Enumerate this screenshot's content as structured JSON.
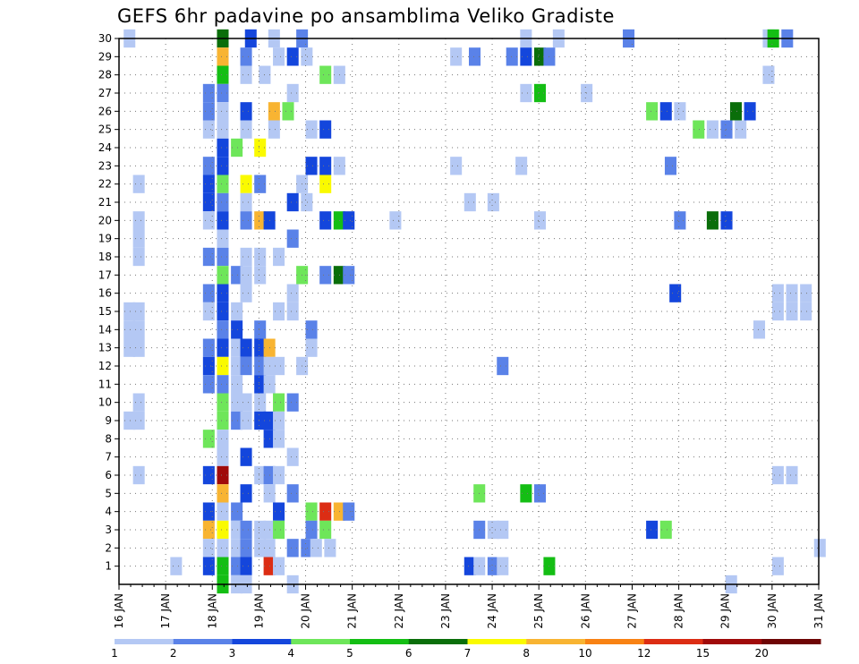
{
  "chart_data": {
    "type": "heatmap",
    "title": "GEFS 6hr padavine po ansamblima Veliko Gradiste",
    "x_tick_labels": [
      "16 JAN",
      "17 JAN",
      "18 JAN",
      "19 JAN",
      "20 JAN",
      "21 JAN",
      "22 JAN",
      "23 JAN",
      "24 JAN",
      "25 JAN",
      "26 JAN",
      "27 JAN",
      "28 JAN",
      "29 JAN",
      "30 JAN",
      "31 JAN"
    ],
    "y_tick_labels": [
      "1",
      "2",
      "3",
      "4",
      "5",
      "6",
      "7",
      "8",
      "9",
      "10",
      "11",
      "12",
      "13",
      "14",
      "15",
      "16",
      "17",
      "18",
      "19",
      "20",
      "21",
      "22",
      "23",
      "24",
      "25",
      "26",
      "27",
      "28",
      "29",
      "30"
    ],
    "xlim_days": [
      0,
      15
    ],
    "ylim": [
      0,
      30
    ],
    "grid": true,
    "colorbar": {
      "labels": [
        "1",
        "2",
        "3",
        "4",
        "5",
        "6",
        "7",
        "8",
        "10",
        "12",
        "15",
        "20"
      ],
      "colors": [
        "#b4c8f4",
        "#5a82e8",
        "#1446dc",
        "#6ee65a",
        "#14be14",
        "#0a6e0a",
        "#fafa00",
        "#f8b432",
        "#f88214",
        "#dc2d14",
        "#a00a0a",
        "#6e0505"
      ]
    },
    "cells": [
      {
        "m": 30,
        "d": 0.1,
        "c": 1
      },
      {
        "m": 30,
        "d": 2.1,
        "c": 6
      },
      {
        "m": 30,
        "d": 2.7,
        "c": 3
      },
      {
        "m": 30,
        "d": 3.2,
        "c": 1
      },
      {
        "m": 30,
        "d": 3.8,
        "c": 2
      },
      {
        "m": 30,
        "d": 8.6,
        "c": 1
      },
      {
        "m": 30,
        "d": 9.3,
        "c": 1
      },
      {
        "m": 30,
        "d": 10.8,
        "c": 2
      },
      {
        "m": 30,
        "d": 13.8,
        "c": 1
      },
      {
        "m": 30,
        "d": 13.9,
        "c": 5
      },
      {
        "m": 30,
        "d": 14.2,
        "c": 2
      },
      {
        "m": 29,
        "d": 2.1,
        "c": 8
      },
      {
        "m": 29,
        "d": 2.6,
        "c": 2
      },
      {
        "m": 29,
        "d": 3.3,
        "c": 1
      },
      {
        "m": 29,
        "d": 3.6,
        "c": 3
      },
      {
        "m": 29,
        "d": 3.9,
        "c": 1
      },
      {
        "m": 29,
        "d": 7.1,
        "c": 1
      },
      {
        "m": 29,
        "d": 7.5,
        "c": 2
      },
      {
        "m": 29,
        "d": 8.3,
        "c": 2
      },
      {
        "m": 29,
        "d": 8.6,
        "c": 3
      },
      {
        "m": 29,
        "d": 8.9,
        "c": 6
      },
      {
        "m": 29,
        "d": 9.1,
        "c": 2
      },
      {
        "m": 28,
        "d": 2.1,
        "c": 5
      },
      {
        "m": 28,
        "d": 2.6,
        "c": 1
      },
      {
        "m": 28,
        "d": 3.0,
        "c": 1
      },
      {
        "m": 28,
        "d": 4.3,
        "c": 4
      },
      {
        "m": 28,
        "d": 4.6,
        "c": 1
      },
      {
        "m": 28,
        "d": 13.8,
        "c": 1
      },
      {
        "m": 27,
        "d": 1.8,
        "c": 2
      },
      {
        "m": 27,
        "d": 2.1,
        "c": 2
      },
      {
        "m": 27,
        "d": 3.6,
        "c": 1
      },
      {
        "m": 27,
        "d": 8.6,
        "c": 1
      },
      {
        "m": 27,
        "d": 8.9,
        "c": 5
      },
      {
        "m": 27,
        "d": 9.9,
        "c": 1
      },
      {
        "m": 26,
        "d": 1.8,
        "c": 2
      },
      {
        "m": 26,
        "d": 2.1,
        "c": 1
      },
      {
        "m": 26,
        "d": 2.6,
        "c": 3
      },
      {
        "m": 26,
        "d": 3.2,
        "c": 8
      },
      {
        "m": 26,
        "d": 3.5,
        "c": 4
      },
      {
        "m": 26,
        "d": 11.3,
        "c": 4
      },
      {
        "m": 26,
        "d": 11.6,
        "c": 3
      },
      {
        "m": 26,
        "d": 11.9,
        "c": 1
      },
      {
        "m": 26,
        "d": 13.1,
        "c": 6
      },
      {
        "m": 26,
        "d": 13.4,
        "c": 3
      },
      {
        "m": 25,
        "d": 1.8,
        "c": 1
      },
      {
        "m": 25,
        "d": 2.1,
        "c": 1
      },
      {
        "m": 25,
        "d": 2.6,
        "c": 1
      },
      {
        "m": 25,
        "d": 3.2,
        "c": 1
      },
      {
        "m": 25,
        "d": 4.0,
        "c": 1
      },
      {
        "m": 25,
        "d": 4.3,
        "c": 3
      },
      {
        "m": 25,
        "d": 12.3,
        "c": 4
      },
      {
        "m": 25,
        "d": 12.6,
        "c": 1
      },
      {
        "m": 25,
        "d": 12.9,
        "c": 2
      },
      {
        "m": 25,
        "d": 13.2,
        "c": 1
      },
      {
        "m": 24,
        "d": 2.1,
        "c": 3
      },
      {
        "m": 24,
        "d": 2.4,
        "c": 4
      },
      {
        "m": 24,
        "d": 2.9,
        "c": 7
      },
      {
        "m": 23,
        "d": 1.8,
        "c": 2
      },
      {
        "m": 23,
        "d": 2.1,
        "c": 3
      },
      {
        "m": 23,
        "d": 4.0,
        "c": 3
      },
      {
        "m": 23,
        "d": 4.3,
        "c": 3
      },
      {
        "m": 23,
        "d": 4.6,
        "c": 1
      },
      {
        "m": 23,
        "d": 7.1,
        "c": 1
      },
      {
        "m": 23,
        "d": 8.5,
        "c": 1
      },
      {
        "m": 23,
        "d": 11.7,
        "c": 2
      },
      {
        "m": 22,
        "d": 0.3,
        "c": 1
      },
      {
        "m": 22,
        "d": 1.8,
        "c": 3
      },
      {
        "m": 22,
        "d": 2.1,
        "c": 4
      },
      {
        "m": 22,
        "d": 2.6,
        "c": 7
      },
      {
        "m": 22,
        "d": 2.9,
        "c": 2
      },
      {
        "m": 22,
        "d": 3.8,
        "c": 1
      },
      {
        "m": 22,
        "d": 4.3,
        "c": 7
      },
      {
        "m": 21,
        "d": 1.8,
        "c": 3
      },
      {
        "m": 21,
        "d": 2.1,
        "c": 2
      },
      {
        "m": 21,
        "d": 2.6,
        "c": 1
      },
      {
        "m": 21,
        "d": 3.6,
        "c": 3
      },
      {
        "m": 21,
        "d": 3.9,
        "c": 1
      },
      {
        "m": 21,
        "d": 7.4,
        "c": 1
      },
      {
        "m": 21,
        "d": 7.9,
        "c": 1
      },
      {
        "m": 20,
        "d": 0.3,
        "c": 1
      },
      {
        "m": 20,
        "d": 1.8,
        "c": 1
      },
      {
        "m": 20,
        "d": 2.1,
        "c": 3
      },
      {
        "m": 20,
        "d": 2.6,
        "c": 2
      },
      {
        "m": 20,
        "d": 2.9,
        "c": 8
      },
      {
        "m": 20,
        "d": 3.1,
        "c": 3
      },
      {
        "m": 20,
        "d": 4.3,
        "c": 3
      },
      {
        "m": 20,
        "d": 4.6,
        "c": 5
      },
      {
        "m": 20,
        "d": 4.8,
        "c": 3
      },
      {
        "m": 20,
        "d": 5.8,
        "c": 1
      },
      {
        "m": 20,
        "d": 8.9,
        "c": 1
      },
      {
        "m": 20,
        "d": 11.9,
        "c": 2
      },
      {
        "m": 20,
        "d": 12.6,
        "c": 6
      },
      {
        "m": 20,
        "d": 12.9,
        "c": 3
      },
      {
        "m": 19,
        "d": 0.3,
        "c": 1
      },
      {
        "m": 19,
        "d": 2.1,
        "c": 1
      },
      {
        "m": 19,
        "d": 3.6,
        "c": 2
      },
      {
        "m": 18,
        "d": 0.3,
        "c": 1
      },
      {
        "m": 18,
        "d": 1.8,
        "c": 2
      },
      {
        "m": 18,
        "d": 2.1,
        "c": 2
      },
      {
        "m": 18,
        "d": 2.6,
        "c": 1
      },
      {
        "m": 18,
        "d": 2.9,
        "c": 1
      },
      {
        "m": 18,
        "d": 3.3,
        "c": 1
      },
      {
        "m": 17,
        "d": 2.1,
        "c": 4
      },
      {
        "m": 17,
        "d": 2.4,
        "c": 2
      },
      {
        "m": 17,
        "d": 2.6,
        "c": 1
      },
      {
        "m": 17,
        "d": 2.9,
        "c": 1
      },
      {
        "m": 17,
        "d": 3.8,
        "c": 4
      },
      {
        "m": 17,
        "d": 4.3,
        "c": 2
      },
      {
        "m": 17,
        "d": 4.6,
        "c": 6
      },
      {
        "m": 17,
        "d": 4.8,
        "c": 2
      },
      {
        "m": 16,
        "d": 1.8,
        "c": 2
      },
      {
        "m": 16,
        "d": 2.1,
        "c": 3
      },
      {
        "m": 16,
        "d": 2.6,
        "c": 1
      },
      {
        "m": 16,
        "d": 3.6,
        "c": 1
      },
      {
        "m": 16,
        "d": 11.8,
        "c": 3
      },
      {
        "m": 16,
        "d": 14.0,
        "c": 1
      },
      {
        "m": 16,
        "d": 14.3,
        "c": 1
      },
      {
        "m": 16,
        "d": 14.6,
        "c": 1
      },
      {
        "m": 15,
        "d": 0.1,
        "c": 1
      },
      {
        "m": 15,
        "d": 0.3,
        "c": 1
      },
      {
        "m": 15,
        "d": 1.8,
        "c": 1
      },
      {
        "m": 15,
        "d": 2.1,
        "c": 3
      },
      {
        "m": 15,
        "d": 2.4,
        "c": 1
      },
      {
        "m": 15,
        "d": 3.3,
        "c": 1
      },
      {
        "m": 15,
        "d": 3.6,
        "c": 1
      },
      {
        "m": 15,
        "d": 14.0,
        "c": 1
      },
      {
        "m": 15,
        "d": 14.3,
        "c": 1
      },
      {
        "m": 15,
        "d": 14.6,
        "c": 1
      },
      {
        "m": 14,
        "d": 0.1,
        "c": 1
      },
      {
        "m": 14,
        "d": 0.3,
        "c": 1
      },
      {
        "m": 14,
        "d": 2.1,
        "c": 2
      },
      {
        "m": 14,
        "d": 2.4,
        "c": 3
      },
      {
        "m": 14,
        "d": 2.9,
        "c": 2
      },
      {
        "m": 14,
        "d": 4.0,
        "c": 2
      },
      {
        "m": 14,
        "d": 13.6,
        "c": 1
      },
      {
        "m": 13,
        "d": 0.1,
        "c": 1
      },
      {
        "m": 13,
        "d": 0.3,
        "c": 1
      },
      {
        "m": 13,
        "d": 1.8,
        "c": 2
      },
      {
        "m": 13,
        "d": 2.1,
        "c": 3
      },
      {
        "m": 13,
        "d": 2.4,
        "c": 1
      },
      {
        "m": 13,
        "d": 2.6,
        "c": 3
      },
      {
        "m": 13,
        "d": 2.9,
        "c": 3
      },
      {
        "m": 13,
        "d": 3.1,
        "c": 8
      },
      {
        "m": 13,
        "d": 4.0,
        "c": 1
      },
      {
        "m": 12,
        "d": 1.8,
        "c": 3
      },
      {
        "m": 12,
        "d": 2.1,
        "c": 7
      },
      {
        "m": 12,
        "d": 2.4,
        "c": 1
      },
      {
        "m": 12,
        "d": 2.6,
        "c": 2
      },
      {
        "m": 12,
        "d": 2.9,
        "c": 2
      },
      {
        "m": 12,
        "d": 3.1,
        "c": 1
      },
      {
        "m": 12,
        "d": 3.3,
        "c": 1
      },
      {
        "m": 12,
        "d": 3.8,
        "c": 1
      },
      {
        "m": 12,
        "d": 8.1,
        "c": 2
      },
      {
        "m": 11,
        "d": 1.8,
        "c": 2
      },
      {
        "m": 11,
        "d": 2.1,
        "c": 2
      },
      {
        "m": 11,
        "d": 2.4,
        "c": 1
      },
      {
        "m": 11,
        "d": 2.9,
        "c": 3
      },
      {
        "m": 11,
        "d": 3.1,
        "c": 1
      },
      {
        "m": 10,
        "d": 0.3,
        "c": 1
      },
      {
        "m": 10,
        "d": 2.1,
        "c": 4
      },
      {
        "m": 10,
        "d": 2.4,
        "c": 1
      },
      {
        "m": 10,
        "d": 2.6,
        "c": 1
      },
      {
        "m": 10,
        "d": 2.9,
        "c": 1
      },
      {
        "m": 10,
        "d": 3.3,
        "c": 4
      },
      {
        "m": 10,
        "d": 3.6,
        "c": 2
      },
      {
        "m": 9,
        "d": 0.1,
        "c": 1
      },
      {
        "m": 9,
        "d": 0.3,
        "c": 1
      },
      {
        "m": 9,
        "d": 2.1,
        "c": 4
      },
      {
        "m": 9,
        "d": 2.4,
        "c": 2
      },
      {
        "m": 9,
        "d": 2.6,
        "c": 1
      },
      {
        "m": 9,
        "d": 2.9,
        "c": 3
      },
      {
        "m": 9,
        "d": 3.1,
        "c": 3
      },
      {
        "m": 9,
        "d": 3.3,
        "c": 1
      },
      {
        "m": 8,
        "d": 1.8,
        "c": 4
      },
      {
        "m": 8,
        "d": 2.1,
        "c": 1
      },
      {
        "m": 8,
        "d": 3.1,
        "c": 3
      },
      {
        "m": 8,
        "d": 3.3,
        "c": 1
      },
      {
        "m": 7,
        "d": 2.1,
        "c": 1
      },
      {
        "m": 7,
        "d": 2.6,
        "c": 3
      },
      {
        "m": 7,
        "d": 3.6,
        "c": 1
      },
      {
        "m": 6,
        "d": 0.3,
        "c": 1
      },
      {
        "m": 6,
        "d": 1.8,
        "c": 3
      },
      {
        "m": 6,
        "d": 2.1,
        "c": 11
      },
      {
        "m": 6,
        "d": 2.9,
        "c": 1
      },
      {
        "m": 6,
        "d": 3.1,
        "c": 2
      },
      {
        "m": 6,
        "d": 3.3,
        "c": 1
      },
      {
        "m": 6,
        "d": 14.0,
        "c": 1
      },
      {
        "m": 6,
        "d": 14.3,
        "c": 1
      },
      {
        "m": 5,
        "d": 2.1,
        "c": 8
      },
      {
        "m": 5,
        "d": 2.6,
        "c": 3
      },
      {
        "m": 5,
        "d": 3.1,
        "c": 1
      },
      {
        "m": 5,
        "d": 3.6,
        "c": 2
      },
      {
        "m": 5,
        "d": 7.6,
        "c": 4
      },
      {
        "m": 5,
        "d": 8.6,
        "c": 5
      },
      {
        "m": 5,
        "d": 8.9,
        "c": 2
      },
      {
        "m": 4,
        "d": 1.8,
        "c": 3
      },
      {
        "m": 4,
        "d": 2.1,
        "c": 1
      },
      {
        "m": 4,
        "d": 2.4,
        "c": 2
      },
      {
        "m": 4,
        "d": 3.3,
        "c": 3
      },
      {
        "m": 4,
        "d": 4.0,
        "c": 4
      },
      {
        "m": 4,
        "d": 4.3,
        "c": 10
      },
      {
        "m": 4,
        "d": 4.6,
        "c": 8
      },
      {
        "m": 4,
        "d": 4.8,
        "c": 2
      },
      {
        "m": 3,
        "d": 1.8,
        "c": 8
      },
      {
        "m": 3,
        "d": 2.1,
        "c": 7
      },
      {
        "m": 3,
        "d": 2.4,
        "c": 1
      },
      {
        "m": 3,
        "d": 2.6,
        "c": 2
      },
      {
        "m": 3,
        "d": 2.9,
        "c": 1
      },
      {
        "m": 3,
        "d": 3.1,
        "c": 1
      },
      {
        "m": 3,
        "d": 3.3,
        "c": 4
      },
      {
        "m": 3,
        "d": 4.0,
        "c": 2
      },
      {
        "m": 3,
        "d": 4.3,
        "c": 4
      },
      {
        "m": 3,
        "d": 7.6,
        "c": 2
      },
      {
        "m": 3,
        "d": 7.9,
        "c": 1
      },
      {
        "m": 3,
        "d": 8.1,
        "c": 1
      },
      {
        "m": 3,
        "d": 11.3,
        "c": 3
      },
      {
        "m": 3,
        "d": 11.6,
        "c": 4
      },
      {
        "m": 2,
        "d": 1.8,
        "c": 1
      },
      {
        "m": 2,
        "d": 2.1,
        "c": 1
      },
      {
        "m": 2,
        "d": 2.4,
        "c": 1
      },
      {
        "m": 2,
        "d": 2.6,
        "c": 2
      },
      {
        "m": 2,
        "d": 2.9,
        "c": 1
      },
      {
        "m": 2,
        "d": 3.1,
        "c": 1
      },
      {
        "m": 2,
        "d": 3.6,
        "c": 2
      },
      {
        "m": 2,
        "d": 3.9,
        "c": 2
      },
      {
        "m": 2,
        "d": 4.1,
        "c": 1
      },
      {
        "m": 2,
        "d": 4.4,
        "c": 1
      },
      {
        "m": 2,
        "d": 14.9,
        "c": 1
      },
      {
        "m": 1,
        "d": 1.1,
        "c": 1
      },
      {
        "m": 1,
        "d": 1.8,
        "c": 3
      },
      {
        "m": 1,
        "d": 2.1,
        "c": 5
      },
      {
        "m": 1,
        "d": 2.4,
        "c": 2
      },
      {
        "m": 1,
        "d": 2.6,
        "c": 3
      },
      {
        "m": 1,
        "d": 3.1,
        "c": 10
      },
      {
        "m": 1,
        "d": 3.3,
        "c": 1
      },
      {
        "m": 1,
        "d": 7.4,
        "c": 3
      },
      {
        "m": 1,
        "d": 7.6,
        "c": 1
      },
      {
        "m": 1,
        "d": 7.9,
        "c": 2
      },
      {
        "m": 1,
        "d": 8.1,
        "c": 1
      },
      {
        "m": 1,
        "d": 9.1,
        "c": 5
      },
      {
        "m": 1,
        "d": 14.0,
        "c": 1
      },
      {
        "m": 0,
        "d": 2.1,
        "c": 5
      },
      {
        "m": 0,
        "d": 2.4,
        "c": 1
      },
      {
        "m": 0,
        "d": 2.6,
        "c": 1
      },
      {
        "m": 0,
        "d": 3.6,
        "c": 1
      },
      {
        "m": 0,
        "d": 13.0,
        "c": 1
      }
    ]
  }
}
